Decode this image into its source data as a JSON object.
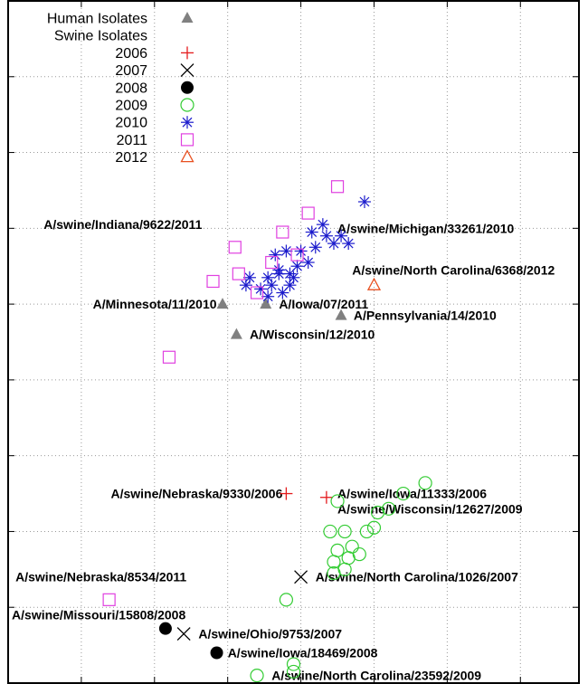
{
  "chart_data": {
    "type": "scatter",
    "title": "",
    "xlabel": "",
    "ylabel": "",
    "xlim": [
      0,
      7.8
    ],
    "ylim": [
      -9,
      0
    ],
    "grid": true,
    "gridlines_x": [
      1,
      2,
      3,
      4,
      5,
      6,
      7
    ],
    "gridlines_y": [
      -1,
      -2,
      -3,
      -4,
      -5,
      -6,
      -7,
      -8
    ],
    "legend_placement": "top-left",
    "legend": [
      {
        "label": "Human Isolates",
        "marker": "triangle",
        "color": "#808080"
      },
      {
        "label": "Swine Isolates",
        "marker": "none",
        "color": "#000000"
      },
      {
        "label": "2006",
        "marker": "plus",
        "color": "#e41a1c"
      },
      {
        "label": "2007",
        "marker": "cross",
        "color": "#000000"
      },
      {
        "label": "2008",
        "marker": "filled-circle",
        "color": "#000000"
      },
      {
        "label": "2009",
        "marker": "circle",
        "color": "#33cc33"
      },
      {
        "label": "2010",
        "marker": "star",
        "color": "#1a1acc"
      },
      {
        "label": "2011",
        "marker": "square",
        "color": "#e040e0"
      },
      {
        "label": "2012",
        "marker": "open-triangle",
        "color": "#e85020"
      }
    ],
    "series": [
      {
        "name": "Human Isolates",
        "points": [
          [
            2.93,
            -4.0
          ],
          [
            3.52,
            -4.0
          ],
          [
            4.55,
            -4.15
          ],
          [
            3.12,
            -4.4
          ]
        ]
      },
      {
        "name": "2006",
        "points": [
          [
            3.8,
            -6.5
          ],
          [
            4.35,
            -6.55
          ]
        ]
      },
      {
        "name": "2007",
        "points": [
          [
            4.0,
            -7.6
          ],
          [
            2.4,
            -8.35
          ]
        ]
      },
      {
        "name": "2008",
        "points": [
          [
            2.15,
            -8.28
          ],
          [
            2.85,
            -8.6
          ]
        ]
      },
      {
        "name": "2009",
        "points": [
          [
            5.7,
            -6.36
          ],
          [
            5.4,
            -6.5
          ],
          [
            5.2,
            -6.7
          ],
          [
            5.05,
            -6.75
          ],
          [
            4.5,
            -6.6
          ],
          [
            5.0,
            -6.95
          ],
          [
            4.9,
            -7.0
          ],
          [
            4.4,
            -7.0
          ],
          [
            4.6,
            -7.0
          ],
          [
            4.7,
            -7.2
          ],
          [
            4.5,
            -7.25
          ],
          [
            4.65,
            -7.35
          ],
          [
            4.45,
            -7.4
          ],
          [
            4.8,
            -7.3
          ],
          [
            4.6,
            -7.5
          ],
          [
            4.45,
            -7.55
          ],
          [
            3.8,
            -7.9
          ],
          [
            3.9,
            -8.75
          ],
          [
            3.9,
            -8.85
          ],
          [
            3.4,
            -8.9
          ]
        ]
      },
      {
        "name": "2010",
        "points": [
          [
            4.87,
            -2.65
          ],
          [
            4.3,
            -2.95
          ],
          [
            4.15,
            -3.05
          ],
          [
            4.35,
            -3.1
          ],
          [
            4.55,
            -3.1
          ],
          [
            4.65,
            -3.2
          ],
          [
            4.45,
            -3.2
          ],
          [
            4.2,
            -3.25
          ],
          [
            4.0,
            -3.3
          ],
          [
            3.8,
            -3.3
          ],
          [
            3.65,
            -3.35
          ],
          [
            3.95,
            -3.5
          ],
          [
            4.1,
            -3.45
          ],
          [
            3.85,
            -3.6
          ],
          [
            3.7,
            -3.55
          ],
          [
            3.55,
            -3.65
          ],
          [
            3.3,
            -3.65
          ],
          [
            3.6,
            -3.75
          ],
          [
            3.45,
            -3.8
          ],
          [
            3.25,
            -3.75
          ],
          [
            3.55,
            -3.9
          ],
          [
            3.75,
            -3.85
          ],
          [
            3.9,
            -3.65
          ],
          [
            3.85,
            -3.75
          ],
          [
            3.7,
            -3.6
          ]
        ]
      },
      {
        "name": "2011",
        "points": [
          [
            4.5,
            -2.45
          ],
          [
            4.1,
            -2.8
          ],
          [
            3.75,
            -3.05
          ],
          [
            3.1,
            -3.25
          ],
          [
            3.6,
            -3.45
          ],
          [
            3.95,
            -3.35
          ],
          [
            3.15,
            -3.6
          ],
          [
            2.8,
            -3.7
          ],
          [
            3.4,
            -3.85
          ],
          [
            2.2,
            -4.7
          ],
          [
            1.38,
            -7.9
          ]
        ]
      },
      {
        "name": "2012",
        "points": [
          [
            5.0,
            -3.75
          ]
        ]
      }
    ],
    "annotations": [
      {
        "text": "A/swine/Indiana/9622/2011",
        "x": 2.65,
        "y": -2.95,
        "anchor": "end"
      },
      {
        "text": "A/swine/Michigan/33261/2010",
        "x": 4.5,
        "y": -3.0,
        "anchor": "start"
      },
      {
        "text": "A/swine/North Carolina/6368/2012",
        "x": 4.7,
        "y": -3.55,
        "anchor": "start"
      },
      {
        "text": "A/Minnesota/11/2010",
        "x": 2.85,
        "y": -4.0,
        "anchor": "end"
      },
      {
        "text": "A/Iowa/07/2011",
        "x": 3.7,
        "y": -4.0,
        "anchor": "start"
      },
      {
        "text": "A/Pennsylvania/14/2010",
        "x": 4.72,
        "y": -4.15,
        "anchor": "start"
      },
      {
        "text": "A/Wisconsin/12/2010",
        "x": 3.3,
        "y": -4.4,
        "anchor": "start"
      },
      {
        "text": "A/swine/Nebraska/9330/2006",
        "x": 3.75,
        "y": -6.5,
        "anchor": "end"
      },
      {
        "text": "A/swine/Iowa/11333/2006",
        "x": 4.5,
        "y": -6.5,
        "anchor": "start"
      },
      {
        "text": "A/swine/Wisconsin/12627/2009",
        "x": 4.5,
        "y": -6.7,
        "anchor": "start"
      },
      {
        "text": "A/swine/Nebraska/8534/2011",
        "x": 0.1,
        "y": -7.6,
        "anchor": "start"
      },
      {
        "text": "A/swine/North Carolina/1026/2007",
        "x": 4.2,
        "y": -7.6,
        "anchor": "start"
      },
      {
        "text": "A/swine/Missouri/15808/2008",
        "x": 0.05,
        "y": -8.1,
        "anchor": "start"
      },
      {
        "text": "A/swine/Ohio/9753/2007",
        "x": 2.6,
        "y": -8.35,
        "anchor": "start"
      },
      {
        "text": "A/swine/Iowa/18469/2008",
        "x": 3.0,
        "y": -8.6,
        "anchor": "start"
      },
      {
        "text": "A/swine/North Carolina/23592/2009",
        "x": 3.6,
        "y": -8.9,
        "anchor": "start"
      }
    ]
  }
}
